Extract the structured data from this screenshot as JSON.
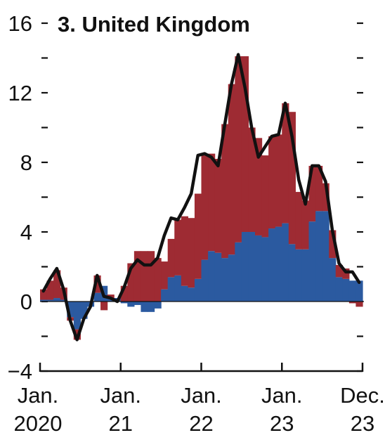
{
  "chart_data": {
    "type": "bar",
    "title": "3. United Kingdom",
    "subtitle": "",
    "xlabel": "",
    "ylabel": "",
    "ylim": [
      -4,
      16
    ],
    "yticks": [
      "16",
      "12",
      "8",
      "4",
      "0",
      "−4"
    ],
    "ytick_values": [
      16,
      12,
      8,
      4,
      0,
      -4
    ],
    "x_tick_labels": [
      {
        "month": "Jan.",
        "year": "2020"
      },
      {
        "month": "Jan.",
        "year": "21"
      },
      {
        "month": "Jan.",
        "year": "22"
      },
      {
        "month": "Jan.",
        "year": "23"
      },
      {
        "month": "Dec.",
        "year": "23"
      }
    ],
    "x_tick_positions": [
      0,
      12,
      24,
      36,
      47
    ],
    "grid": false,
    "stacked": true,
    "categories": [
      "2020-01",
      "2020-02",
      "2020-03",
      "2020-04",
      "2020-05",
      "2020-06",
      "2020-07",
      "2020-08",
      "2020-09",
      "2020-10",
      "2020-11",
      "2020-12",
      "2021-01",
      "2021-02",
      "2021-03",
      "2021-04",
      "2021-05",
      "2021-06",
      "2021-07",
      "2021-08",
      "2021-09",
      "2021-10",
      "2021-11",
      "2021-12",
      "2022-01",
      "2022-02",
      "2022-03",
      "2022-04",
      "2022-05",
      "2022-06",
      "2022-07",
      "2022-08",
      "2022-09",
      "2022-10",
      "2022-11",
      "2022-12",
      "2023-01",
      "2023-02",
      "2023-03",
      "2023-04",
      "2023-05",
      "2023-06",
      "2023-07",
      "2023-08",
      "2023-09",
      "2023-10",
      "2023-11",
      "2023-12"
    ],
    "series": [
      {
        "color": "#2b5aa0",
        "values": [
          0.1,
          0.1,
          0.2,
          0.1,
          -0.9,
          -1.6,
          -1.0,
          -0.3,
          0.5,
          0.9,
          0.2,
          0.2,
          -0.1,
          -0.3,
          -0.2,
          -0.6,
          -0.6,
          -0.4,
          0.7,
          1.4,
          1.5,
          0.9,
          0.8,
          1.3,
          2.4,
          2.9,
          2.8,
          2.5,
          2.7,
          3.4,
          4.0,
          4.0,
          3.8,
          3.7,
          4.2,
          4.3,
          4.5,
          3.3,
          3.0,
          3.0,
          4.6,
          5.2,
          5.2,
          2.5,
          1.4,
          1.3,
          1.2,
          1.2
        ]
      },
      {
        "color": "#9e2b33",
        "values": [
          0.6,
          1.1,
          1.6,
          0.7,
          -0.2,
          -0.6,
          0.0,
          0.0,
          1.0,
          -0.5,
          0.2,
          0.0,
          0.9,
          2.2,
          2.9,
          2.9,
          2.9,
          2.5,
          1.6,
          2.2,
          3.2,
          4.0,
          4.0,
          4.9,
          6.1,
          5.6,
          5.4,
          7.7,
          9.8,
          10.7,
          10.1,
          6.0,
          5.6,
          4.7,
          5.3,
          5.3,
          6.9,
          7.6,
          3.3,
          2.8,
          3.2,
          2.6,
          1.6,
          1.6,
          0.7,
          0.6,
          -0.1,
          -0.3
        ]
      },
      {
        "color": "#111111",
        "type": "line",
        "values": [
          0.6,
          1.3,
          1.9,
          0.7,
          -1.1,
          -2.2,
          -1.0,
          -0.3,
          1.5,
          0.3,
          0.2,
          0.0,
          0.8,
          1.9,
          2.4,
          2.1,
          2.1,
          2.5,
          3.8,
          4.8,
          4.7,
          5.4,
          6.2,
          8.4,
          8.5,
          8.3,
          7.8,
          10.2,
          12.5,
          14.2,
          12.3,
          10.0,
          8.3,
          8.9,
          9.5,
          9.6,
          11.4,
          9.5,
          7.0,
          5.6,
          7.8,
          7.8,
          6.9,
          4.1,
          2.2,
          1.7,
          1.7,
          1.1
        ]
      }
    ]
  }
}
